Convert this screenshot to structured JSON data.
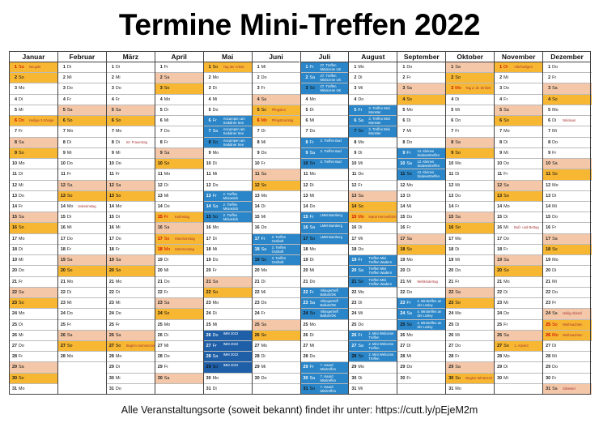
{
  "title": "Termine Mini-Treffen 2022",
  "footer": "Alle Veranstaltungsorte (soweit bekannt) findet ihr unter: https://cutt.ly/pEjeM2m",
  "colors": {
    "saturday": "#f3c7a8",
    "sunday": "#f7b733",
    "event": "#2a86c8",
    "event_dark": "#1f5fa8"
  },
  "months": [
    {
      "name": "Januar",
      "days": 31,
      "start": 5,
      "notes": {
        "1": "Neujahr",
        "6": "Heilige 3 Könige"
      },
      "events": {}
    },
    {
      "name": "Februar",
      "days": 28,
      "start": 1,
      "notes": {
        "14": "Valentinstag"
      },
      "events": {}
    },
    {
      "name": "März",
      "days": 31,
      "start": 1,
      "notes": {
        "8": "Int. Frauentag",
        "27": "Beginn Sommerzeit"
      },
      "events": {}
    },
    {
      "name": "April",
      "days": 30,
      "start": 4,
      "notes": {
        "15": "Karfreitag",
        "17": "Ostersonntag",
        "18": "Ostermontag"
      },
      "events": {}
    },
    {
      "name": "Mai",
      "days": 31,
      "start": 6,
      "notes": {
        "1": "Tag der Arbeit"
      },
      "events": {
        "6": "Ancampen am Seddiner See",
        "7": "Ancampen am Seddiner See",
        "8": "Ancampen am Seddiner See",
        "13": "2. Treffen Miniastick",
        "14": "2. Treffen Miniastick",
        "15": "2. Treffen Miniastick",
        "26": "IMM 2022",
        "27": "IMM 2022",
        "28": "IMM 2022",
        "29": "IMM 2022"
      }
    },
    {
      "name": "Juni",
      "days": 30,
      "start": 2,
      "notes": {
        "5": "Pfingsten",
        "6": "Pfingstmontag"
      },
      "events": {
        "17": "3. Treffen Grafsoft",
        "18": "3. Treffen Grafsoft",
        "19": "3. Treffen Grafsoft"
      }
    },
    {
      "name": "Juli",
      "days": 31,
      "start": 4,
      "notes": {},
      "events": {
        "1": "27. Treffen Miniszene UK",
        "2": "27. Treffen Miniszene UK",
        "3": "27. Treffen Miniszene UK",
        "8": "3. Treffen Bad",
        "9": "3. Treffen Bad",
        "10": "3. Treffen Bad",
        "15": "LMM Bamberg",
        "16": "LMM Bamberg",
        "17": "LMM Bamberg",
        "22": "Vikingertreff Ballum/DK",
        "23": "Vikingertreff Ballum/DK",
        "24": "Vikingertreff Ballum/DK",
        "29": "7. Haard Minitreffen",
        "30": "7. Haard Minitreffen",
        "31": "7. Haard Minitreffen"
      }
    },
    {
      "name": "August",
      "days": 31,
      "start": 0,
      "notes": {
        "15": "Mariä Himmelfahrt"
      },
      "events": {
        "5": "3. Treffen Mini Monster",
        "6": "3. Treffen Mini Monster",
        "7": "3. Treffen Mini Monster",
        "19": "Treffen Mini Treffen Wadern",
        "20": "Treffen Mini Treffen Wadern",
        "21": "Treffen Mini Treffen Wadern",
        "26": "2. Mini Welcome Treffen",
        "27": "2. Mini Welcome Treffen",
        "28": "2. Mini Welcome Treffen"
      }
    },
    {
      "name": "September",
      "days": 30,
      "start": 3,
      "notes": {
        "21": "Weltkindertag"
      },
      "events": {
        "9": "13. Kleines Südwesttreffen",
        "10": "13. Kleines Südwesttreffen",
        "11": "13. Kleines Südwesttreffen",
        "23": "4. Minitreffen an der Losley",
        "24": "4. Minitreffen an der Losley",
        "25": "4. Minitreffen an der Losley"
      }
    },
    {
      "name": "Oktober",
      "days": 31,
      "start": 5,
      "notes": {
        "3": "Tag d. dt. Einheit",
        "30": "Beginn Winterzeit"
      },
      "events": {}
    },
    {
      "name": "November",
      "days": 30,
      "start": 1,
      "notes": {
        "1": "Allerheiligen",
        "16": "Buß- und Bettag",
        "27": "1. Advent"
      },
      "events": {}
    },
    {
      "name": "Dezember",
      "days": 31,
      "start": 3,
      "notes": {
        "6": "Nikolaus",
        "24": "Heilig Abend",
        "25": "Weihnachten",
        "26": "Weihnachten",
        "31": "Silvester"
      },
      "events": {}
    }
  ],
  "weekday_abbr": [
    "Mo",
    "Di",
    "Mi",
    "Do",
    "Fr",
    "Sa",
    "So"
  ]
}
